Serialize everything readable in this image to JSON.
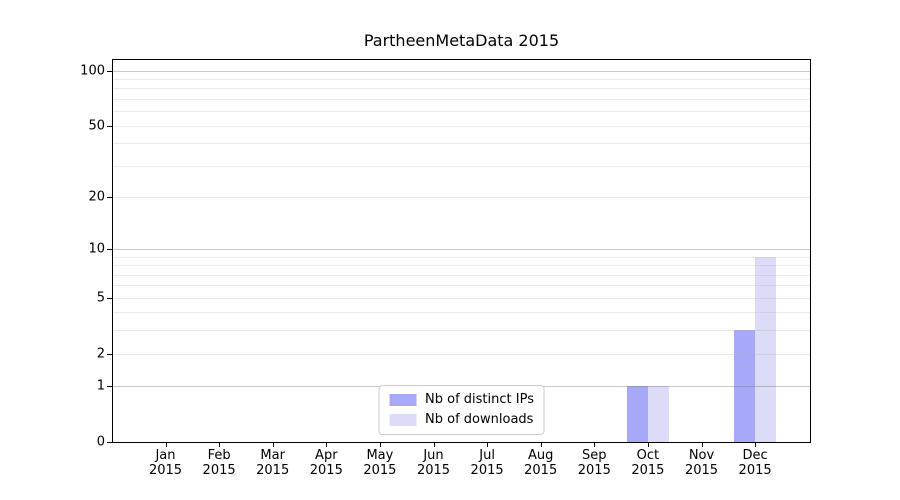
{
  "title": "PartheenMetaData 2015",
  "chart_data": {
    "type": "bar",
    "title": "PartheenMetaData 2015",
    "categories": [
      "Jan",
      "Feb",
      "Mar",
      "Apr",
      "May",
      "Jun",
      "Jul",
      "Aug",
      "Sep",
      "Oct",
      "Nov",
      "Dec"
    ],
    "category_year": "2015",
    "series": [
      {
        "name": "Nb of distinct IPs",
        "color": "#a8a8f8",
        "values": [
          0,
          0,
          0,
          0,
          0,
          0,
          0,
          0,
          0,
          1,
          0,
          3
        ]
      },
      {
        "name": "Nb of downloads",
        "color": "#dcdcf8",
        "values": [
          0,
          0,
          0,
          0,
          0,
          0,
          0,
          0,
          0,
          1,
          0,
          9
        ]
      }
    ],
    "xlabel": "",
    "ylabel": "",
    "yscale": "log1p",
    "y_ticks": [
      0,
      1,
      2,
      5,
      10,
      20,
      50,
      100
    ],
    "y_major_gridlines": [
      1,
      10,
      100
    ],
    "y_minor_gridlines": [
      2,
      3,
      4,
      5,
      6,
      7,
      8,
      9,
      20,
      30,
      40,
      50,
      60,
      70,
      80,
      90
    ],
    "ylim": [
      0,
      114
    ],
    "grid": true,
    "legend_position": "lower center"
  },
  "colors": {
    "bar_distinct_ips": "#a8a8f8",
    "bar_downloads": "#dcdcf8",
    "spine": "#000000",
    "major_grid": "#c2c2c2",
    "minor_grid": "#ededed",
    "legend_border": "#cccccc",
    "background": "#ffffff"
  }
}
